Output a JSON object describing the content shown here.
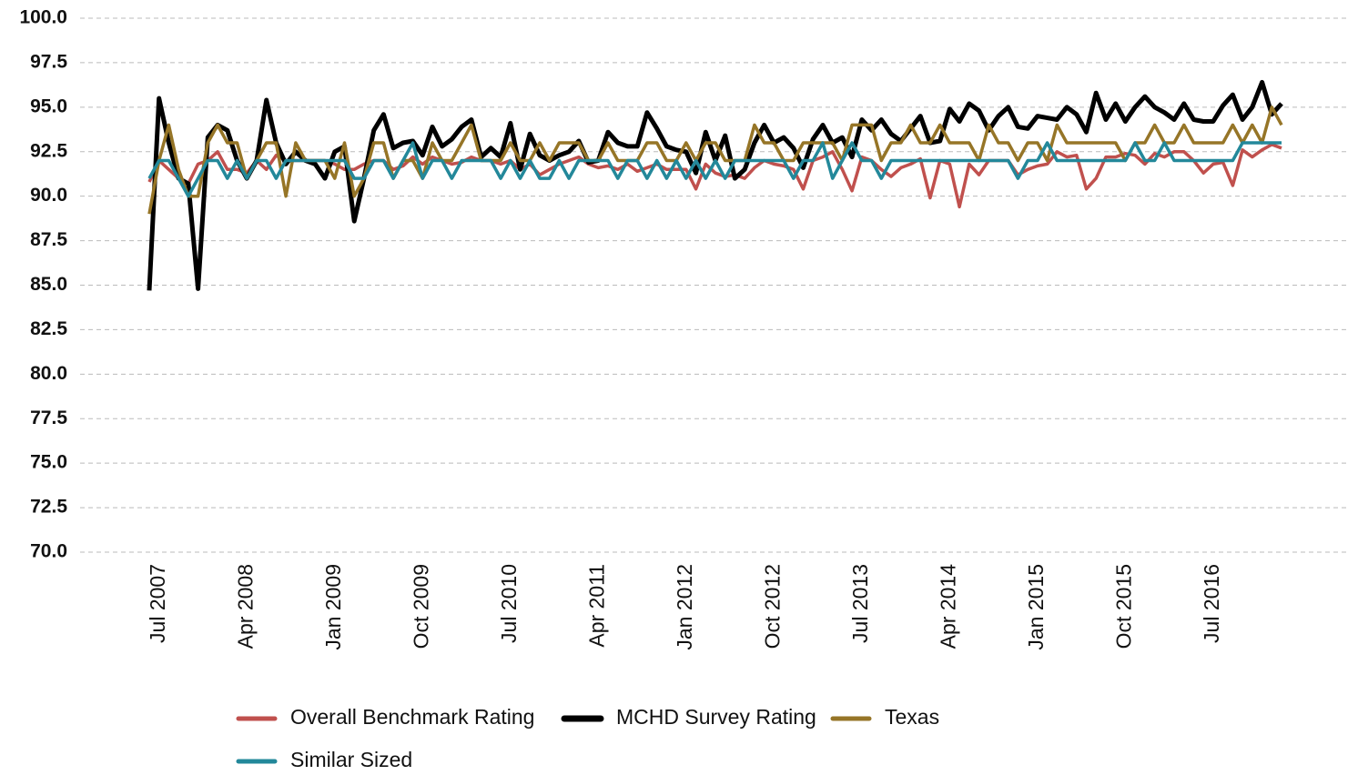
{
  "chart_data": {
    "type": "line",
    "categories": [
      null,
      "Jul 2007",
      null,
      null,
      null,
      null,
      null,
      null,
      null,
      null,
      "Apr 2008",
      null,
      null,
      null,
      null,
      null,
      null,
      null,
      null,
      "Jan 2009",
      null,
      null,
      null,
      null,
      null,
      null,
      null,
      null,
      "Oct 2009",
      null,
      null,
      null,
      null,
      null,
      null,
      null,
      null,
      "Jul 2010",
      null,
      null,
      null,
      null,
      null,
      null,
      null,
      null,
      "Apr 2011",
      null,
      null,
      null,
      null,
      null,
      null,
      null,
      null,
      "Jan 2012",
      null,
      null,
      null,
      null,
      null,
      null,
      null,
      null,
      "Oct 2012",
      null,
      null,
      null,
      null,
      null,
      null,
      null,
      null,
      "Jul 2013",
      null,
      null,
      null,
      null,
      null,
      null,
      null,
      null,
      "Apr 2014",
      null,
      null,
      null,
      null,
      null,
      null,
      null,
      null,
      "Jan 2015",
      null,
      null,
      null,
      null,
      null,
      null,
      null,
      null,
      "Oct 2015",
      null,
      null,
      null,
      null,
      null,
      null,
      null,
      null,
      "Jul 2016",
      null,
      null,
      null,
      null,
      null,
      null,
      null
    ],
    "series": [
      {
        "name": "Overall Benchmark Rating",
        "color": "#c0504d",
        "values": [
          90.8,
          92,
          91.5,
          91,
          90.7,
          91.8,
          92,
          92.5,
          91.5,
          91.5,
          91.3,
          92,
          91.5,
          92.3,
          92,
          92,
          92,
          92,
          92,
          91.8,
          91.5,
          91.5,
          91.8,
          92,
          92,
          91.5,
          91.7,
          92.2,
          91.8,
          92.2,
          92,
          91.8,
          91.9,
          92.2,
          92,
          92,
          91.8,
          92,
          91.5,
          91.8,
          91.2,
          91.5,
          91.8,
          92,
          92.2,
          91.8,
          91.6,
          91.7,
          91.5,
          91.8,
          91.4,
          91.6,
          91.8,
          91.5,
          91.5,
          91.5,
          90.4,
          91.8,
          91.3,
          91.1,
          91.2,
          91,
          91.6,
          92,
          91.8,
          91.7,
          91.5,
          90.4,
          92,
          92.2,
          92.5,
          91.5,
          90.3,
          92.2,
          92,
          91.5,
          91.1,
          91.6,
          91.8,
          92.1,
          89.9,
          92,
          91.8,
          89.4,
          91.8,
          91.2,
          92,
          92,
          92,
          91.2,
          91.5,
          91.7,
          91.8,
          92.5,
          92.2,
          92.3,
          90.4,
          91,
          92.2,
          92.2,
          92.4,
          92.3,
          91.8,
          92.4,
          92.2,
          92.5,
          92.5,
          92,
          91.3,
          91.8,
          91.9,
          90.6,
          92.6,
          92.2,
          92.6,
          92.9,
          92.7
        ]
      },
      {
        "name": "MCHD Survey Rating",
        "color": "#000000",
        "values": [
          84.7,
          95.5,
          93.0,
          91.0,
          90.7,
          84.8,
          93.3,
          94.0,
          93.7,
          92.0,
          91.0,
          92.0,
          95.4,
          93.0,
          91.8,
          92.5,
          92.0,
          91.8,
          91.0,
          92.5,
          92.8,
          88.6,
          91.0,
          93.7,
          94.6,
          92.7,
          93.0,
          93.1,
          92.3,
          93.9,
          92.8,
          93.2,
          93.9,
          94.3,
          92.2,
          92.7,
          92.2,
          94.1,
          91.5,
          93.5,
          92.3,
          92.0,
          92.3,
          92.5,
          93.1,
          91.9,
          92.0,
          93.6,
          93.0,
          92.8,
          92.8,
          94.7,
          93.8,
          92.8,
          92.6,
          92.5,
          91.3,
          93.6,
          92.0,
          93.4,
          91.0,
          91.5,
          93.0,
          94.0,
          93.0,
          93.3,
          92.7,
          91.6,
          93.2,
          94.0,
          93.0,
          93.3,
          92.2,
          94.3,
          93.7,
          94.3,
          93.5,
          93.1,
          93.8,
          94.5,
          93.0,
          93.1,
          94.9,
          94.2,
          95.2,
          94.8,
          93.7,
          94.5,
          95.0,
          93.9,
          93.8,
          94.5,
          94.4,
          94.3,
          95.0,
          94.6,
          93.6,
          95.8,
          94.3,
          95.2,
          94.2,
          95.0,
          95.6,
          95.0,
          94.7,
          94.3,
          95.2,
          94.3,
          94.2,
          94.2,
          95.1,
          95.7,
          94.3,
          95.0,
          96.4,
          94.6,
          95.2
        ]
      },
      {
        "name": "Texas",
        "color": "#967527",
        "values": [
          89,
          92,
          94,
          91.5,
          90,
          90,
          93,
          94,
          93,
          93,
          91,
          92,
          93,
          93,
          90,
          93,
          92,
          92,
          92,
          91,
          93,
          90,
          91,
          93,
          93,
          91,
          92,
          92,
          91,
          93,
          92,
          92,
          93,
          94,
          92,
          92,
          92,
          93,
          92,
          92,
          93,
          92,
          93,
          93,
          93,
          92,
          92,
          93,
          92,
          92,
          92,
          93,
          93,
          92,
          92,
          93,
          92,
          93,
          93,
          92,
          92,
          92,
          94,
          93,
          93,
          92,
          92,
          93,
          93,
          93,
          93,
          92,
          94,
          94,
          94,
          92,
          93,
          93,
          94,
          93,
          93,
          94,
          93,
          93,
          93,
          92,
          94,
          93,
          93,
          92,
          93,
          93,
          92,
          94,
          93,
          93,
          93,
          93,
          93,
          93,
          92,
          93,
          93,
          94,
          93,
          93,
          94,
          93,
          93,
          93,
          93,
          94,
          93,
          94,
          93,
          95,
          94
        ]
      },
      {
        "name": "Similar Sized",
        "color": "#23889a",
        "values": [
          91,
          92,
          92,
          91,
          90,
          91,
          92,
          92,
          91,
          92,
          91,
          92,
          92,
          91,
          92,
          92,
          92,
          92,
          92,
          92,
          92,
          91,
          91,
          92,
          92,
          91,
          92,
          93,
          91,
          92,
          92,
          91,
          92,
          92,
          92,
          92,
          91,
          92,
          91,
          92,
          91,
          91,
          92,
          91,
          92,
          92,
          92,
          92,
          91,
          92,
          92,
          91,
          92,
          91,
          92,
          91,
          92,
          91,
          92,
          91,
          92,
          92,
          92,
          92,
          92,
          92,
          91,
          92,
          92,
          93,
          91,
          92,
          93,
          92,
          92,
          91,
          92,
          92,
          92,
          92,
          92,
          92,
          92,
          92,
          92,
          92,
          92,
          92,
          92,
          91,
          92,
          92,
          93,
          92,
          92,
          92,
          92,
          92,
          92,
          92,
          92,
          93,
          92,
          92,
          93,
          92,
          92,
          92,
          92,
          92,
          92,
          92,
          93,
          93,
          93,
          93,
          93
        ]
      }
    ],
    "ylim": [
      70,
      100
    ],
    "yticks": [
      {
        "value": 70,
        "label": "70.0"
      },
      {
        "value": 72.5,
        "label": "72.5"
      },
      {
        "value": 75,
        "label": "75.0"
      },
      {
        "value": 77.5,
        "label": "77.5"
      },
      {
        "value": 80,
        "label": "80.0"
      },
      {
        "value": 82.5,
        "label": "82.5"
      },
      {
        "value": 85,
        "label": "85.0"
      },
      {
        "value": 87.5,
        "label": "87.5"
      },
      {
        "value": 90,
        "label": "90.0"
      },
      {
        "value": 92.5,
        "label": "92.5"
      },
      {
        "value": 95,
        "label": "95.0"
      },
      {
        "value": 97.5,
        "label": "97.5"
      },
      {
        "value": 100,
        "label": "100.0"
      }
    ],
    "grid": true,
    "legend": "bottom"
  }
}
